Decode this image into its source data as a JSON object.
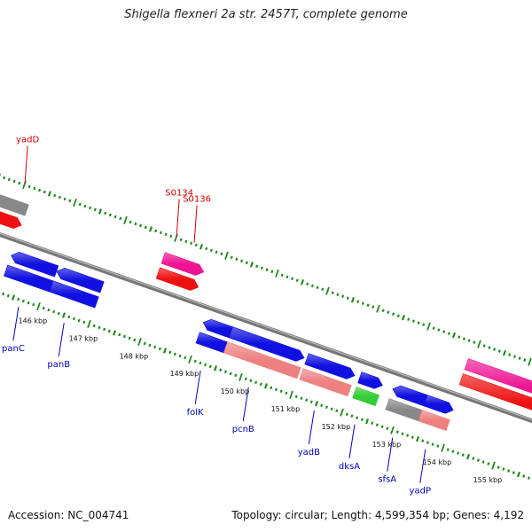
{
  "title": "Shigella flexneri 2a str. 2457T, complete genome",
  "footer": {
    "accession": "Accession: NC_004741",
    "summary": "Topology: circular; Length: 4,599,354 bp; Genes: 4,192"
  },
  "colors": {
    "blue": "#1010e0",
    "red": "#ee1111",
    "magenta": "#ee1493",
    "salmon": "#ee8080",
    "green": "#33cc33",
    "grey": "#888888",
    "tick": "#228822",
    "top_label": "#cc0000",
    "bottom_label": "#0000bb"
  },
  "scale": {
    "unit": "kbp",
    "major_ticks": [
      {
        "kbp": 146,
        "label": "146 kbp"
      },
      {
        "kbp": 147,
        "label": "147 kbp"
      },
      {
        "kbp": 148,
        "label": "148 kbp"
      },
      {
        "kbp": 149,
        "label": "149 kbp"
      },
      {
        "kbp": 150,
        "label": "150 kbp"
      },
      {
        "kbp": 151,
        "label": "151 kbp"
      },
      {
        "kbp": 152,
        "label": "152 kbp"
      },
      {
        "kbp": 153,
        "label": "153 kbp"
      },
      {
        "kbp": 154,
        "label": "154 kbp"
      },
      {
        "kbp": 155,
        "label": "155 kbp"
      }
    ]
  },
  "features": [
    {
      "track": "top-cds",
      "color": "grey",
      "start": 143.5,
      "end": 145.2,
      "strand": "none"
    },
    {
      "track": "top-gene",
      "color": "red",
      "start": 143.5,
      "end": 145.2,
      "strand": "plus"
    },
    {
      "track": "top-cds",
      "color": "magenta",
      "start": 147.9,
      "end": 148.7,
      "strand": "plus"
    },
    {
      "track": "top-gene",
      "color": "red",
      "start": 147.9,
      "end": 148.7,
      "strand": "plus"
    },
    {
      "track": "top-cds",
      "color": "magenta",
      "start": 153.9,
      "end": 157.5,
      "strand": "plus"
    },
    {
      "track": "top-gene",
      "color": "red",
      "start": 153.9,
      "end": 157.5,
      "strand": "plus"
    },
    {
      "track": "bot-cds",
      "color": "blue",
      "start": 145.2,
      "end": 146.1,
      "strand": "minus"
    },
    {
      "track": "bot-cds",
      "color": "blue",
      "start": 146.1,
      "end": 147.0,
      "strand": "minus"
    },
    {
      "track": "bot-gene",
      "color": "blue",
      "start": 145.2,
      "end": 146.1,
      "strand": "none"
    },
    {
      "track": "bot-gene",
      "color": "blue",
      "start": 146.1,
      "end": 147.0,
      "strand": "none"
    },
    {
      "track": "bot-cds",
      "color": "blue",
      "start": 149.0,
      "end": 149.55,
      "strand": "minus"
    },
    {
      "track": "bot-cds",
      "color": "blue",
      "start": 149.55,
      "end": 151.0,
      "strand": "plus"
    },
    {
      "track": "bot-gene",
      "color": "blue",
      "start": 149.0,
      "end": 149.55,
      "strand": "none"
    },
    {
      "track": "bot-gene",
      "color": "salmon",
      "start": 149.55,
      "end": 151.0,
      "strand": "none"
    },
    {
      "track": "bot-cds",
      "color": "blue",
      "start": 151.05,
      "end": 152.0,
      "strand": "plus"
    },
    {
      "track": "bot-gene",
      "color": "salmon",
      "start": 151.05,
      "end": 152.0,
      "strand": "none"
    },
    {
      "track": "bot-cds",
      "color": "blue",
      "start": 152.1,
      "end": 152.55,
      "strand": "plus"
    },
    {
      "track": "bot-gene",
      "color": "green",
      "start": 152.1,
      "end": 152.55,
      "strand": "none"
    },
    {
      "track": "bot-cds",
      "color": "blue",
      "start": 152.75,
      "end": 153.4,
      "strand": "minus"
    },
    {
      "track": "bot-cds",
      "color": "blue",
      "start": 153.4,
      "end": 153.95,
      "strand": "plus"
    },
    {
      "track": "bot-gene",
      "color": "grey",
      "start": 152.75,
      "end": 153.4,
      "strand": "none"
    },
    {
      "track": "bot-gene",
      "color": "salmon",
      "start": 153.4,
      "end": 153.95,
      "strand": "none"
    }
  ],
  "labels": [
    {
      "side": "top",
      "text": "yadD",
      "kbp": 145.0
    },
    {
      "side": "top",
      "text": "S0134",
      "kbp": 148.0
    },
    {
      "side": "top",
      "text": "S0136",
      "kbp": 148.35
    },
    {
      "side": "bottom",
      "text": "panC",
      "kbp": 145.65
    },
    {
      "side": "bottom",
      "text": "panB",
      "kbp": 146.55
    },
    {
      "side": "bottom",
      "text": "folK",
      "kbp": 149.25
    },
    {
      "side": "bottom",
      "text": "pcnB",
      "kbp": 150.2
    },
    {
      "side": "bottom",
      "text": "yadB",
      "kbp": 151.5
    },
    {
      "side": "bottom",
      "text": "dksA",
      "kbp": 152.3
    },
    {
      "side": "bottom",
      "text": "sfsA",
      "kbp": 153.05
    },
    {
      "side": "bottom",
      "text": "yadP",
      "kbp": 153.7
    }
  ]
}
